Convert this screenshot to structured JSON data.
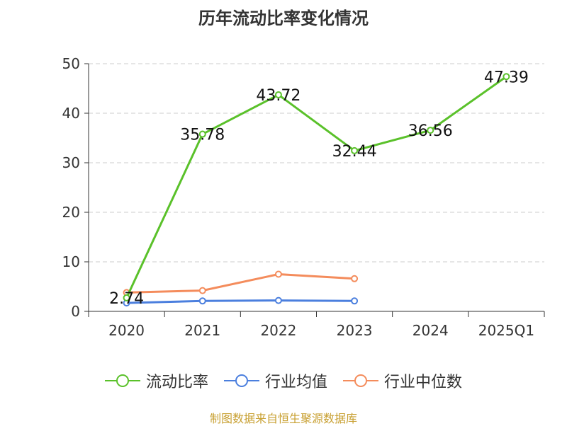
{
  "chart_data": {
    "type": "line",
    "title": "历年流动比率变化情况",
    "categories": [
      "2020",
      "2021",
      "2022",
      "2023",
      "2024",
      "2025Q1"
    ],
    "ylim": [
      0,
      50
    ],
    "yticks": [
      0,
      10,
      20,
      30,
      40,
      50
    ],
    "grid": true,
    "legend_position": "bottom",
    "series": [
      {
        "name": "流动比率",
        "color": "#5ac12a",
        "values": [
          2.74,
          35.78,
          43.72,
          32.44,
          36.56,
          47.39
        ],
        "labels": [
          "2.74",
          "35.78",
          "43.72",
          "32.44",
          "36.56",
          "47.39"
        ]
      },
      {
        "name": "行业均值",
        "color": "#4b7fde",
        "values": [
          1.7,
          2.1,
          2.2,
          2.1,
          null,
          null
        ]
      },
      {
        "name": "行业中位数",
        "color": "#f48c5c",
        "values": [
          3.8,
          4.2,
          7.5,
          6.6,
          null,
          null
        ]
      }
    ]
  },
  "source": "制图数据来自恒生聚源数据库"
}
